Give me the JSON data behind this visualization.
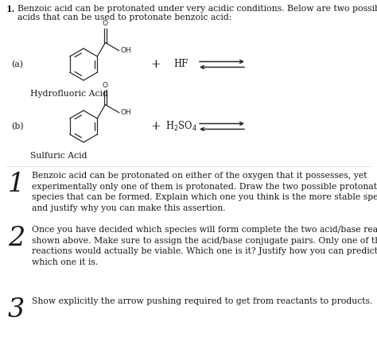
{
  "title_number": "1.",
  "title_text": "Benzoic acid can be protonated under very acidic conditions. Below are two possible",
  "title_text2": "acids that can be used to protonate benzoic acid:",
  "label_a": "(a)",
  "label_b": "(b)",
  "acid_a": "HF",
  "acid_b": "H$_2$SO$_4$",
  "label_hydro": "Hydrofluoric Acid",
  "label_sulfuric": "Sulfuric Acid",
  "q1_num": "1",
  "q1_text": "Benzoic acid can be protonated on either of the oxygen that it possesses, yet\nexperimentally only one of them is protonated. Draw the two possible protonated\nspecies that can be formed. Explain which one you think is the more stable species\nand justify why you can make this assertion.",
  "q2_num": "2",
  "q2_text": "Once you have decided which species will form complete the two acid/base reactions\nshown above. Make sure to assign the acid/base conjugate pairs. Only one of these\nreactions would actually be viable. Which one is it? Justify how you can predict\nwhich one it is.",
  "q3_num": "3",
  "q3_text": "Show explicitly the arrow pushing required to get from reactants to products.",
  "bg_color": "#ffffff",
  "text_color": "#1a1a1a",
  "mol_color": "#2a2a2a",
  "font_size_body": 7.8,
  "font_size_num": 24,
  "figw": 4.74,
  "figh": 4.34,
  "dpi": 100
}
